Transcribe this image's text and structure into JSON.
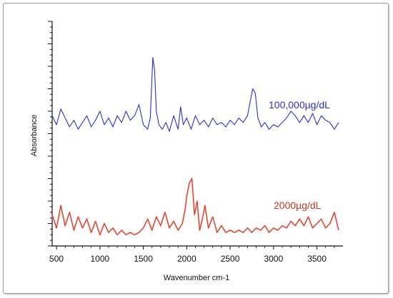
{
  "chart_data": {
    "type": "line",
    "title": "",
    "xlabel": "Wavenumber cm-1",
    "ylabel": "Absorbance",
    "xlim": [
      450,
      3800
    ],
    "ylim": [
      0,
      1
    ],
    "x_ticks": [
      "500",
      "1000",
      "1500",
      "2000",
      "2500",
      "3000",
      "3500"
    ],
    "x_tick_values": [
      500,
      1000,
      1500,
      2000,
      2500,
      3000,
      3500
    ],
    "y_tick_count": 40,
    "grid": false,
    "series": [
      {
        "name": "100,000µg/dL",
        "color": "#2b2fd0",
        "x": [
          450,
          500,
          550,
          600,
          650,
          700,
          750,
          800,
          850,
          900,
          950,
          1000,
          1050,
          1100,
          1150,
          1200,
          1250,
          1300,
          1350,
          1400,
          1450,
          1500,
          1550,
          1580,
          1610,
          1630,
          1650,
          1680,
          1720,
          1760,
          1800,
          1850,
          1900,
          1930,
          1960,
          2000,
          2050,
          2100,
          2150,
          2200,
          2250,
          2300,
          2350,
          2400,
          2450,
          2500,
          2550,
          2600,
          2650,
          2700,
          2730,
          2760,
          2790,
          2820,
          2860,
          2900,
          2950,
          3000,
          3050,
          3100,
          3150,
          3200,
          3250,
          3300,
          3350,
          3400,
          3450,
          3500,
          3550,
          3600,
          3650,
          3700,
          3750
        ],
        "y": [
          0.58,
          0.54,
          0.61,
          0.57,
          0.53,
          0.56,
          0.52,
          0.55,
          0.58,
          0.53,
          0.56,
          0.6,
          0.54,
          0.57,
          0.53,
          0.58,
          0.55,
          0.6,
          0.56,
          0.58,
          0.63,
          0.54,
          0.52,
          0.57,
          0.84,
          0.78,
          0.6,
          0.54,
          0.52,
          0.55,
          0.51,
          0.58,
          0.52,
          0.62,
          0.54,
          0.57,
          0.52,
          0.58,
          0.54,
          0.56,
          0.53,
          0.57,
          0.54,
          0.55,
          0.53,
          0.56,
          0.54,
          0.57,
          0.55,
          0.58,
          0.64,
          0.7,
          0.68,
          0.57,
          0.53,
          0.55,
          0.52,
          0.54,
          0.53,
          0.55,
          0.57,
          0.6,
          0.58,
          0.55,
          0.58,
          0.55,
          0.59,
          0.54,
          0.58,
          0.56,
          0.55,
          0.52,
          0.55
        ]
      },
      {
        "name": "2000µg/dL",
        "color": "#c0391c",
        "x": [
          450,
          500,
          550,
          600,
          650,
          700,
          750,
          800,
          850,
          900,
          950,
          1000,
          1050,
          1100,
          1150,
          1200,
          1250,
          1300,
          1350,
          1400,
          1450,
          1500,
          1550,
          1600,
          1650,
          1700,
          1750,
          1800,
          1850,
          1900,
          1950,
          1980,
          2000,
          2030,
          2060,
          2090,
          2120,
          2150,
          2180,
          2210,
          2250,
          2300,
          2350,
          2400,
          2450,
          2500,
          2550,
          2600,
          2650,
          2700,
          2750,
          2800,
          2850,
          2900,
          2950,
          3000,
          3050,
          3100,
          3150,
          3200,
          3250,
          3300,
          3350,
          3400,
          3450,
          3500,
          3550,
          3600,
          3650,
          3700,
          3750
        ],
        "y": [
          0.14,
          0.08,
          0.18,
          0.09,
          0.15,
          0.07,
          0.13,
          0.08,
          0.12,
          0.06,
          0.11,
          0.05,
          0.1,
          0.06,
          0.08,
          0.05,
          0.07,
          0.05,
          0.06,
          0.05,
          0.06,
          0.08,
          0.12,
          0.07,
          0.13,
          0.09,
          0.15,
          0.08,
          0.11,
          0.07,
          0.1,
          0.16,
          0.22,
          0.28,
          0.3,
          0.14,
          0.2,
          0.07,
          0.12,
          0.18,
          0.08,
          0.13,
          0.06,
          0.09,
          0.06,
          0.07,
          0.06,
          0.07,
          0.06,
          0.08,
          0.06,
          0.08,
          0.07,
          0.09,
          0.06,
          0.08,
          0.07,
          0.09,
          0.08,
          0.11,
          0.09,
          0.12,
          0.09,
          0.13,
          0.08,
          0.1,
          0.12,
          0.08,
          0.1,
          0.15,
          0.07
        ]
      }
    ],
    "annotations": [
      {
        "text": "100,000µg/dL",
        "series": 0
      },
      {
        "text": "2000µg/dL",
        "series": 1
      }
    ]
  }
}
